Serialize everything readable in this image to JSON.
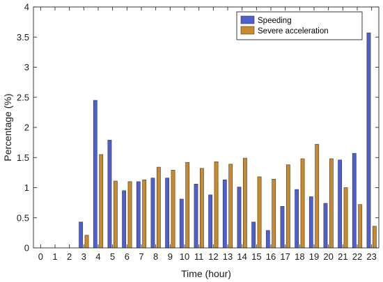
{
  "chart_data": {
    "type": "bar",
    "xlabel": "Time (hour)",
    "ylabel": "Percentage (%)",
    "ylim": [
      0,
      4
    ],
    "yticks": [
      "0",
      "0.5",
      "1",
      "1.5",
      "2",
      "2.5",
      "3",
      "3.5",
      "4"
    ],
    "categories": [
      "0",
      "1",
      "2",
      "3",
      "4",
      "5",
      "6",
      "7",
      "8",
      "9",
      "10",
      "11",
      "12",
      "13",
      "14",
      "15",
      "16",
      "17",
      "18",
      "19",
      "20",
      "21",
      "22",
      "23"
    ],
    "grid": false,
    "legend_position": "top-right",
    "series": [
      {
        "name": "Speeding",
        "color": "#4f5fd0",
        "values": [
          0,
          0,
          0,
          0.43,
          2.45,
          1.79,
          0.95,
          1.1,
          1.16,
          1.16,
          0.81,
          1.06,
          0.88,
          1.13,
          1.01,
          0.43,
          0.29,
          0.69,
          0.97,
          0.85,
          0.74,
          1.46,
          1.57,
          3.57
        ]
      },
      {
        "name": "Severe acceleration",
        "color": "#c88a2c",
        "values": [
          0,
          0,
          0,
          0.21,
          1.55,
          1.11,
          1.1,
          1.13,
          1.34,
          1.29,
          1.42,
          1.32,
          1.43,
          1.39,
          1.49,
          1.18,
          1.14,
          1.38,
          1.48,
          1.72,
          1.48,
          1.0,
          0.72,
          0.36
        ]
      }
    ]
  }
}
